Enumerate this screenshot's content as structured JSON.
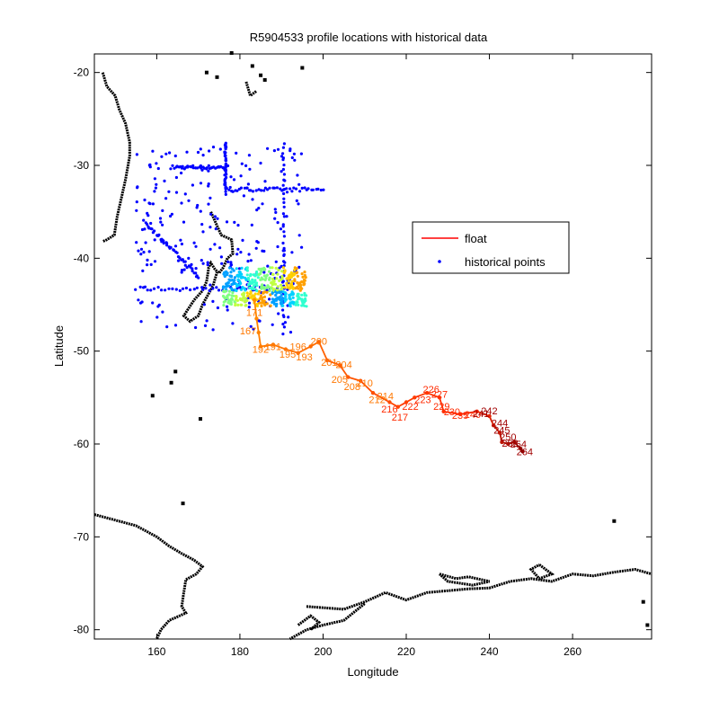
{
  "chart_data": {
    "type": "scatter",
    "title": "R5904533 profile locations with historical data",
    "xlabel": "Longitude",
    "ylabel": "Latitude",
    "xlim": [
      145,
      279
    ],
    "ylim": [
      -81,
      -18
    ],
    "xticks": [
      160,
      180,
      200,
      220,
      240,
      260
    ],
    "yticks": [
      -20,
      -30,
      -40,
      -50,
      -60,
      -70,
      -80
    ],
    "grid": false,
    "legend_position": "upper-right",
    "legend": [
      {
        "name": "float",
        "style": "line",
        "color": "#ff0000"
      },
      {
        "name": "historical points",
        "style": "marker",
        "color": "#0000ff"
      }
    ],
    "float_track": {
      "name": "float",
      "color_scheme": "jet (blue to dark red by profile number)",
      "points": [
        [
          183.5,
          -44.5
        ],
        [
          184,
          -46.5
        ],
        [
          184.5,
          -48
        ],
        [
          185,
          -49.5
        ],
        [
          188,
          -49.3
        ],
        [
          191,
          -49.8
        ],
        [
          194,
          -50.2
        ],
        [
          197,
          -49.5
        ],
        [
          199,
          -49.0
        ],
        [
          201,
          -51.0
        ],
        [
          204,
          -51.5
        ],
        [
          206,
          -52.8
        ],
        [
          209,
          -53.2
        ],
        [
          212,
          -54.5
        ],
        [
          216,
          -55.5
        ],
        [
          218,
          -56.0
        ],
        [
          220,
          -55.5
        ],
        [
          222,
          -55.0
        ],
        [
          225,
          -54.5
        ],
        [
          228,
          -55.0
        ],
        [
          229,
          -56.5
        ],
        [
          233,
          -56.8
        ],
        [
          237,
          -56.5
        ],
        [
          240,
          -57.0
        ],
        [
          241,
          -58.0
        ],
        [
          242.5,
          -58.8
        ],
        [
          243,
          -59.8
        ],
        [
          244.5,
          -60.0
        ],
        [
          246,
          -59.8
        ],
        [
          247.5,
          -60.5
        ],
        [
          248,
          -60.8
        ]
      ],
      "labels": [
        {
          "text": "171",
          "x": 181.5,
          "y": -46.2
        },
        {
          "text": "167",
          "x": 180,
          "y": -48.2
        },
        {
          "text": "192",
          "x": 183,
          "y": -50.2
        },
        {
          "text": "191",
          "x": 186,
          "y": -49.9
        },
        {
          "text": "195",
          "x": 189.5,
          "y": -50.7
        },
        {
          "text": "196",
          "x": 192,
          "y": -49.9
        },
        {
          "text": "193",
          "x": 193.5,
          "y": -51
        },
        {
          "text": "200",
          "x": 197,
          "y": -49.3
        },
        {
          "text": "201",
          "x": 199.5,
          "y": -51.6
        },
        {
          "text": "204",
          "x": 203,
          "y": -51.8
        },
        {
          "text": "205",
          "x": 202,
          "y": -53.4
        },
        {
          "text": "208",
          "x": 205,
          "y": -54.2
        },
        {
          "text": "210",
          "x": 208,
          "y": -53.8
        },
        {
          "text": "212",
          "x": 211,
          "y": -55.6
        },
        {
          "text": "214",
          "x": 213,
          "y": -55.2
        },
        {
          "text": "216",
          "x": 214,
          "y": -56.6
        },
        {
          "text": "217",
          "x": 216.5,
          "y": -57.5
        },
        {
          "text": "222",
          "x": 219,
          "y": -56.3
        },
        {
          "text": "223",
          "x": 222,
          "y": -55.6
        },
        {
          "text": "226",
          "x": 224,
          "y": -54.5
        },
        {
          "text": "227",
          "x": 226,
          "y": -55
        },
        {
          "text": "229",
          "x": 226.5,
          "y": -56.3
        },
        {
          "text": "230",
          "x": 229,
          "y": -56.9
        },
        {
          "text": "235",
          "x": 231,
          "y": -57.3
        },
        {
          "text": "240",
          "x": 234,
          "y": -57.2
        },
        {
          "text": "241",
          "x": 236,
          "y": -57.1
        },
        {
          "text": "242",
          "x": 238,
          "y": -56.8
        },
        {
          "text": "244",
          "x": 240.5,
          "y": -58.1
        },
        {
          "text": "245",
          "x": 241,
          "y": -58.9
        },
        {
          "text": "250",
          "x": 242.5,
          "y": -59.6
        },
        {
          "text": "252",
          "x": 243,
          "y": -60.3
        },
        {
          "text": "254",
          "x": 245,
          "y": -60.4
        },
        {
          "text": "264",
          "x": 246.5,
          "y": -61.2
        }
      ]
    },
    "historical_points": {
      "name": "historical points",
      "color": "#0000ff",
      "regions": [
        {
          "desc": "zonal row 30S",
          "lon": [
            164,
            177
          ],
          "lat": [
            -30.2,
            -30.2
          ]
        },
        {
          "desc": "zonal row 32.5S",
          "lon": [
            177,
            200
          ],
          "lat": [
            -32.6,
            -32.6
          ]
        },
        {
          "desc": "zonal row 43S",
          "lon": [
            155,
            190
          ],
          "lat": [
            -43.3,
            -43.3
          ]
        },
        {
          "desc": "meridional 190E",
          "lon": [
            190.5,
            190.5
          ],
          "lat": [
            -27.5,
            -48
          ]
        },
        {
          "desc": "meridional 177E",
          "lon": [
            176.5,
            176.5
          ],
          "lat": [
            -27.5,
            -33
          ]
        },
        {
          "desc": "diagonal track",
          "lon": [
            157,
            170
          ],
          "lat": [
            -36,
            -42
          ]
        }
      ]
    },
    "coastline": {
      "color": "#000000",
      "segments": [
        [
          [
            147,
            -20
          ],
          [
            148,
            -21.5
          ],
          [
            150,
            -22.5
          ],
          [
            151,
            -24
          ],
          [
            152.5,
            -25.5
          ],
          [
            153.5,
            -27.5
          ],
          [
            153.5,
            -29
          ],
          [
            152.5,
            -31.5
          ],
          [
            151.5,
            -33.5
          ],
          [
            150.5,
            -35.5
          ],
          [
            149.8,
            -37.5
          ],
          [
            148,
            -38
          ],
          [
            147,
            -38.2
          ]
        ],
        [
          [
            181.5,
            -21
          ],
          [
            182.5,
            -22.5
          ],
          [
            184,
            -22
          ]
        ],
        [
          [
            173,
            -35
          ],
          [
            174.5,
            -36.5
          ],
          [
            175.5,
            -37.5
          ],
          [
            178,
            -38
          ],
          [
            178.3,
            -39.5
          ],
          [
            177,
            -40
          ],
          [
            176,
            -41
          ],
          [
            175,
            -41.6
          ],
          [
            174,
            -41.2
          ],
          [
            173,
            -40.5
          ],
          [
            172.5,
            -41
          ],
          [
            172,
            -42.5
          ],
          [
            171,
            -43.5
          ],
          [
            169,
            -44.5
          ],
          [
            167.5,
            -45.5
          ],
          [
            166.5,
            -46.2
          ],
          [
            168,
            -46.8
          ],
          [
            170,
            -46.2
          ],
          [
            171,
            -45
          ],
          [
            172.5,
            -43.8
          ],
          [
            173.5,
            -43
          ],
          [
            174.5,
            -41.5
          ]
        ],
        [
          [
            145,
            -67.6
          ],
          [
            150,
            -68.2
          ],
          [
            155,
            -68.8
          ],
          [
            160,
            -70
          ],
          [
            163,
            -71
          ],
          [
            166,
            -71.8
          ],
          [
            169,
            -72.5
          ],
          [
            171,
            -73.2
          ],
          [
            169.5,
            -74
          ],
          [
            167,
            -74.6
          ],
          [
            166.5,
            -76
          ],
          [
            166,
            -77.5
          ],
          [
            167,
            -78.2
          ],
          [
            163,
            -79
          ],
          [
            161,
            -80
          ],
          [
            160,
            -81
          ]
        ],
        [
          [
            196,
            -77.5
          ],
          [
            205,
            -77.8
          ],
          [
            210,
            -77
          ],
          [
            215,
            -76
          ],
          [
            220,
            -76.8
          ],
          [
            225,
            -76
          ],
          [
            230,
            -75.8
          ],
          [
            235,
            -75.6
          ],
          [
            240,
            -75.5
          ],
          [
            245,
            -74.8
          ],
          [
            250,
            -74.5
          ],
          [
            255,
            -74.8
          ],
          [
            260,
            -74
          ],
          [
            265,
            -74.2
          ],
          [
            270,
            -73.8
          ],
          [
            275,
            -73.5
          ],
          [
            279,
            -74
          ]
        ],
        [
          [
            210,
            -77.2
          ],
          [
            205,
            -79
          ],
          [
            200,
            -79.5
          ],
          [
            196,
            -80
          ],
          [
            192,
            -81
          ]
        ],
        [
          [
            194,
            -79.5
          ],
          [
            197,
            -78.5
          ],
          [
            199,
            -79.2
          ],
          [
            197,
            -80
          ]
        ],
        [
          [
            228,
            -74
          ],
          [
            232,
            -74.5
          ],
          [
            235,
            -74.3
          ],
          [
            240,
            -74.8
          ],
          [
            236,
            -75.2
          ],
          [
            230,
            -74.8
          ],
          [
            228,
            -74
          ]
        ],
        [
          [
            252,
            -73
          ],
          [
            255,
            -74
          ],
          [
            252,
            -74.5
          ],
          [
            250,
            -73.5
          ],
          [
            252,
            -73
          ]
        ]
      ],
      "dots": [
        [
          185,
          -20.3
        ],
        [
          183,
          -19.3
        ],
        [
          186,
          -20.8
        ],
        [
          174.5,
          -20.5
        ],
        [
          172,
          -20
        ],
        [
          195,
          -19.5
        ],
        [
          178,
          -17.9
        ],
        [
          164.5,
          -52.2
        ],
        [
          163.5,
          -53.4
        ],
        [
          159,
          -54.8
        ],
        [
          166.3,
          -66.4
        ],
        [
          170.5,
          -57.3
        ],
        [
          270,
          -68.3
        ],
        [
          277,
          -77
        ],
        [
          278,
          -79.5
        ]
      ]
    }
  }
}
